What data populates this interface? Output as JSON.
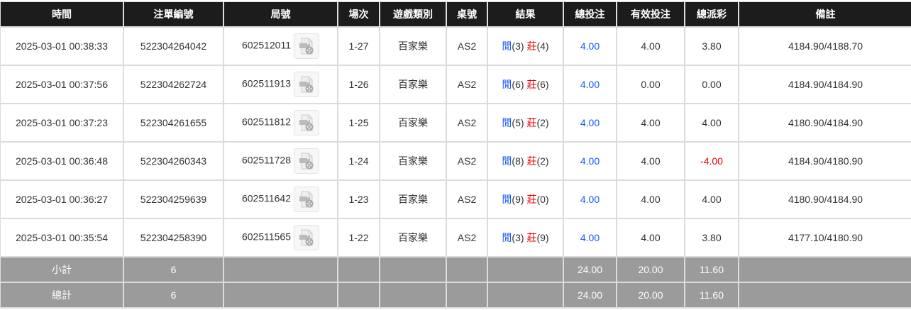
{
  "headers": [
    "時間",
    "注單編號",
    "局號",
    "場次",
    "遊戲類別",
    "桌號",
    "結果",
    "總投注",
    "有效投注",
    "總派彩",
    "備註"
  ],
  "colors": {
    "header_bg": "#1c1c1c",
    "summary_bg": "#9b9b9b",
    "player": "#1a56ff",
    "banker": "#ee0000",
    "negative": "#ee0000"
  },
  "rows": [
    {
      "time": "2025-03-01 00:38:33",
      "bet_id": "522304264042",
      "round": "602512011",
      "shoe": "1-27",
      "game": "百家樂",
      "table": "AS2",
      "player_label": "閒",
      "player_score": "(3)",
      "banker_label": "莊",
      "banker_score": "(4)",
      "total_bet": "4.00",
      "valid_bet": "4.00",
      "payout": "3.80",
      "note": "4184.90/4188.70"
    },
    {
      "time": "2025-03-01 00:37:56",
      "bet_id": "522304262724",
      "round": "602511913",
      "shoe": "1-26",
      "game": "百家樂",
      "table": "AS2",
      "player_label": "閒",
      "player_score": "(6)",
      "banker_label": "莊",
      "banker_score": "(6)",
      "total_bet": "4.00",
      "valid_bet": "0.00",
      "payout": "0.00",
      "note": "4184.90/4184.90"
    },
    {
      "time": "2025-03-01 00:37:23",
      "bet_id": "522304261655",
      "round": "602511812",
      "shoe": "1-25",
      "game": "百家樂",
      "table": "AS2",
      "player_label": "閒",
      "player_score": "(5)",
      "banker_label": "莊",
      "banker_score": "(2)",
      "total_bet": "4.00",
      "valid_bet": "4.00",
      "payout": "4.00",
      "note": "4180.90/4184.90"
    },
    {
      "time": "2025-03-01 00:36:48",
      "bet_id": "522304260343",
      "round": "602511728",
      "shoe": "1-24",
      "game": "百家樂",
      "table": "AS2",
      "player_label": "閒",
      "player_score": "(8)",
      "banker_label": "莊",
      "banker_score": "(2)",
      "total_bet": "4.00",
      "valid_bet": "4.00",
      "payout": "-4.00",
      "note": "4184.90/4180.90"
    },
    {
      "time": "2025-03-01 00:36:27",
      "bet_id": "522304259639",
      "round": "602511642",
      "shoe": "1-23",
      "game": "百家樂",
      "table": "AS2",
      "player_label": "閒",
      "player_score": "(9)",
      "banker_label": "莊",
      "banker_score": "(0)",
      "total_bet": "4.00",
      "valid_bet": "4.00",
      "payout": "4.00",
      "note": "4180.90/4184.90"
    },
    {
      "time": "2025-03-01 00:35:54",
      "bet_id": "522304258390",
      "round": "602511565",
      "shoe": "1-22",
      "game": "百家樂",
      "table": "AS2",
      "player_label": "閒",
      "player_score": "(3)",
      "banker_label": "莊",
      "banker_score": "(9)",
      "total_bet": "4.00",
      "valid_bet": "4.00",
      "payout": "3.80",
      "note": "4177.10/4180.90"
    }
  ],
  "summary": [
    {
      "label": "小計",
      "count": "6",
      "total_bet": "24.00",
      "valid_bet": "20.00",
      "payout": "11.60"
    },
    {
      "label": "總計",
      "count": "6",
      "total_bet": "24.00",
      "valid_bet": "20.00",
      "payout": "11.60"
    }
  ]
}
